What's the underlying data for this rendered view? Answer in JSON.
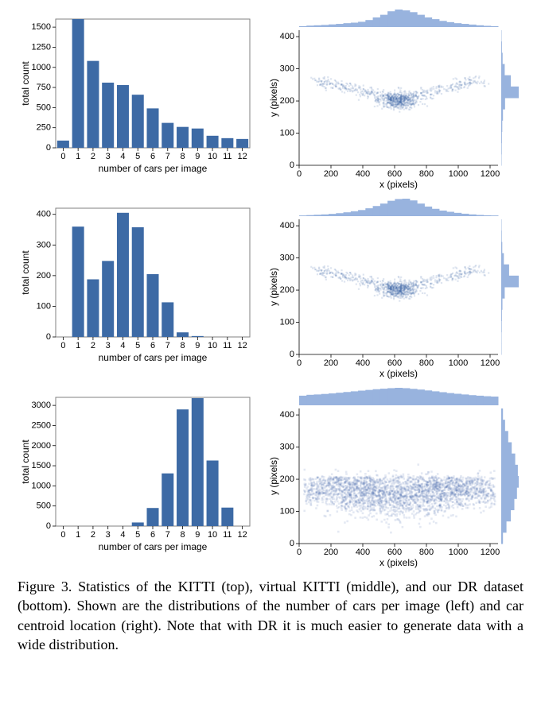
{
  "rows": [
    {
      "hist": {
        "type": "bar",
        "categories": [
          "0",
          "1",
          "2",
          "3",
          "4",
          "5",
          "6",
          "7",
          "8",
          "9",
          "10",
          "11",
          "12"
        ],
        "values": [
          90,
          1610,
          1080,
          810,
          780,
          660,
          490,
          310,
          260,
          240,
          150,
          120,
          110
        ],
        "ylim": [
          0,
          1600
        ],
        "ytick_step": 250,
        "bar_color": "#3d6aa5",
        "border_color": "#808080",
        "background_color": "#ffffff",
        "xlabel": "number of cars per image",
        "ylabel": "total count"
      },
      "scatter": {
        "type": "heatmap",
        "xlabel": "x (pixels)",
        "ylabel": "y (pixels)",
        "xlim": [
          0,
          1250
        ],
        "xtick_step": 200,
        "ylim": [
          0,
          420
        ],
        "ytick_step": 100,
        "bg": "#ffffff",
        "marginal_color": "#98b3de",
        "pattern": "narrow",
        "top_hist": [
          0.05,
          0.08,
          0.1,
          0.12,
          0.15,
          0.18,
          0.22,
          0.25,
          0.3,
          0.4,
          0.55,
          0.7,
          0.9,
          1.0,
          0.95,
          0.85,
          0.7,
          0.55,
          0.45,
          0.35,
          0.28,
          0.22,
          0.18,
          0.14,
          0.1,
          0.07,
          0.05
        ],
        "right_hist": [
          0.02,
          0.03,
          0.04,
          0.06,
          0.1,
          0.22,
          1.0,
          0.55,
          0.2,
          0.08,
          0.04,
          0.02
        ]
      }
    },
    {
      "hist": {
        "type": "bar",
        "categories": [
          "0",
          "1",
          "2",
          "3",
          "4",
          "5",
          "6",
          "7",
          "8",
          "9",
          "10",
          "11",
          "12"
        ],
        "values": [
          0,
          360,
          188,
          248,
          405,
          358,
          205,
          113,
          15,
          3,
          0,
          0,
          0
        ],
        "ylim": [
          0,
          420
        ],
        "ytick_step": 100,
        "bar_color": "#3d6aa5",
        "border_color": "#808080",
        "background_color": "#ffffff",
        "xlabel": "number of cars per image",
        "ylabel": "total count"
      },
      "scatter": {
        "type": "heatmap",
        "xlabel": "x (pixels)",
        "ylabel": "y (pixels)",
        "xlim": [
          0,
          1250
        ],
        "xtick_step": 200,
        "ylim": [
          0,
          420
        ],
        "ytick_step": 100,
        "bg": "#ffffff",
        "marginal_color": "#98b3de",
        "pattern": "narrow",
        "top_hist": [
          0.04,
          0.06,
          0.08,
          0.1,
          0.13,
          0.17,
          0.22,
          0.28,
          0.35,
          0.45,
          0.58,
          0.72,
          0.88,
          0.98,
          1.0,
          0.9,
          0.72,
          0.55,
          0.42,
          0.32,
          0.25,
          0.19,
          0.14,
          0.1,
          0.07,
          0.05,
          0.04
        ],
        "right_hist": [
          0.02,
          0.02,
          0.03,
          0.04,
          0.07,
          0.2,
          1.0,
          0.45,
          0.15,
          0.06,
          0.03,
          0.02
        ]
      }
    },
    {
      "hist": {
        "type": "bar",
        "categories": [
          "0",
          "1",
          "2",
          "3",
          "4",
          "5",
          "6",
          "7",
          "8",
          "9",
          "10",
          "11",
          "12"
        ],
        "values": [
          0,
          0,
          0,
          0,
          0,
          90,
          450,
          1310,
          2900,
          3180,
          1630,
          460,
          0
        ],
        "ylim": [
          0,
          3200
        ],
        "ytick_step": 500,
        "bar_color": "#3d6aa5",
        "border_color": "#808080",
        "background_color": "#ffffff",
        "xlabel": "number of cars per image",
        "ylabel": "total count"
      },
      "scatter": {
        "type": "heatmap",
        "xlabel": "x (pixels)",
        "ylabel": "y (pixels)",
        "xlim": [
          0,
          1250
        ],
        "xtick_step": 200,
        "ylim": [
          0,
          420
        ],
        "ytick_step": 100,
        "bg": "#ffffff",
        "marginal_color": "#98b3de",
        "pattern": "wide",
        "top_hist": [
          0.55,
          0.6,
          0.62,
          0.65,
          0.68,
          0.72,
          0.76,
          0.8,
          0.84,
          0.88,
          0.92,
          0.95,
          0.98,
          1.0,
          0.98,
          0.94,
          0.9,
          0.85,
          0.8,
          0.75,
          0.7,
          0.66,
          0.62,
          0.58,
          0.55,
          0.52,
          0.5
        ],
        "right_hist": [
          0.1,
          0.3,
          0.55,
          0.75,
          0.9,
          1.0,
          0.95,
          0.8,
          0.6,
          0.4,
          0.22,
          0.1
        ]
      }
    }
  ],
  "caption": "Figure 3. Statistics of the KITTI (top), virtual KITTI (middle), and our DR dataset (bottom). Shown are the distributions of the number of cars per image (left) and car centroid location (right). Note that with DR it is much easier to generate data with a wide distribution."
}
